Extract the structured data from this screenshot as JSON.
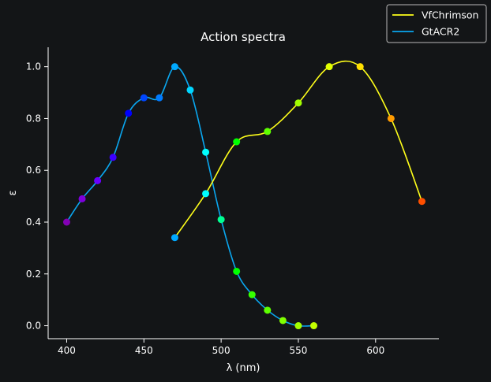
{
  "chart_data": {
    "type": "line",
    "title": "Action spectra",
    "xlabel": "λ (nm)",
    "ylabel": "ε",
    "xlim": [
      388,
      641
    ],
    "ylim": [
      -0.05,
      1.075
    ],
    "x_ticks": [
      400,
      450,
      500,
      550,
      600
    ],
    "y_ticks": [
      0.0,
      0.2,
      0.4,
      0.6,
      0.8,
      1.0
    ],
    "y_tick_labels": [
      "0.0",
      "0.2",
      "0.4",
      "0.6",
      "0.8",
      "1.0"
    ],
    "legend": {
      "position": "top-right"
    },
    "series": [
      {
        "name": "VfChrimson",
        "color": "#ffff1a",
        "x": [
          470,
          490,
          510,
          530,
          550,
          570,
          590,
          610,
          630
        ],
        "y": [
          0.34,
          0.51,
          0.71,
          0.75,
          0.86,
          1.0,
          1.0,
          0.8,
          0.48
        ]
      },
      {
        "name": "GtACR2",
        "color": "#0aa7f0",
        "x": [
          400,
          410,
          420,
          430,
          440,
          450,
          460,
          470,
          480,
          490,
          500,
          510,
          520,
          530,
          540,
          550,
          560
        ],
        "y": [
          0.4,
          0.49,
          0.56,
          0.65,
          0.82,
          0.88,
          0.88,
          1.0,
          0.91,
          0.67,
          0.41,
          0.21,
          0.12,
          0.06,
          0.02,
          0.0,
          0.0
        ]
      }
    ]
  }
}
